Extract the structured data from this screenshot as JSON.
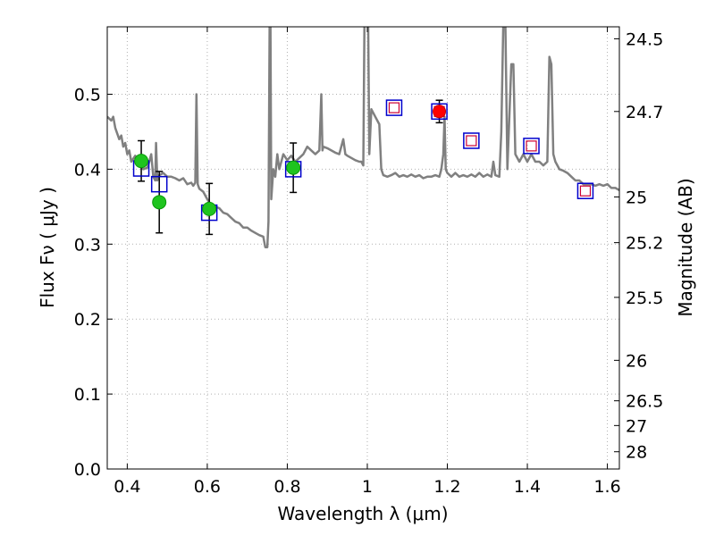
{
  "chart_data": {
    "type": "scatter",
    "title": "",
    "xlabel": "Wavelength  λ (μm)",
    "ylabel": "Flux  Fν  ( μJy )",
    "y2label": "Magnitude (AB)",
    "xlim": [
      0.35,
      1.63
    ],
    "ylim": [
      0.0,
      0.59
    ],
    "grid": true,
    "xticks": [
      0.4,
      0.6,
      0.8,
      1.0,
      1.2,
      1.4,
      1.6
    ],
    "xtick_labels": [
      "0.4",
      "0.6",
      "0.8",
      "1",
      "1.2",
      "1.4",
      "1.6"
    ],
    "yticks": [
      0.0,
      0.1,
      0.2,
      0.3,
      0.4,
      0.5
    ],
    "ytick_labels": [
      "0.0",
      "0.1",
      "0.2",
      "0.3",
      "0.4",
      "0.5"
    ],
    "y2ticks": [
      {
        "label": "24.5",
        "flux": 0.574
      },
      {
        "label": "24.7",
        "flux": 0.477
      },
      {
        "label": "25",
        "flux": 0.363
      },
      {
        "label": "25.2",
        "flux": 0.302
      },
      {
        "label": "25.5",
        "flux": 0.229
      },
      {
        "label": "26",
        "flux": 0.145
      },
      {
        "label": "26.5",
        "flux": 0.091
      },
      {
        "label": "27",
        "flux": 0.058
      },
      {
        "label": "28",
        "flux": 0.023
      }
    ],
    "colors": {
      "spectrum": "#808080",
      "observed_fill": "#1fc41f",
      "observed_edge": "#0a9a0a",
      "upper_fill": "#ff0000",
      "model_box": "#0000cc",
      "ir_box_inner": "#cc0033",
      "errorbar": "#000000",
      "grid": "#b0b0b0"
    },
    "series": [
      {
        "kind": "line",
        "points": [
          [
            0.35,
            0.47
          ],
          [
            0.36,
            0.465
          ],
          [
            0.365,
            0.47
          ],
          [
            0.37,
            0.455
          ],
          [
            0.38,
            0.44
          ],
          [
            0.385,
            0.445
          ],
          [
            0.39,
            0.43
          ],
          [
            0.395,
            0.435
          ],
          [
            0.4,
            0.42
          ],
          [
            0.405,
            0.425
          ],
          [
            0.41,
            0.41
          ],
          [
            0.42,
            0.418
          ],
          [
            0.43,
            0.405
          ],
          [
            0.44,
            0.4
          ],
          [
            0.45,
            0.402
          ],
          [
            0.455,
            0.41
          ],
          [
            0.46,
            0.42
          ],
          [
            0.465,
            0.39
          ],
          [
            0.47,
            0.385
          ],
          [
            0.472,
            0.435
          ],
          [
            0.475,
            0.385
          ],
          [
            0.48,
            0.392
          ],
          [
            0.49,
            0.395
          ],
          [
            0.5,
            0.39
          ],
          [
            0.51,
            0.39
          ],
          [
            0.52,
            0.388
          ],
          [
            0.53,
            0.385
          ],
          [
            0.54,
            0.388
          ],
          [
            0.55,
            0.38
          ],
          [
            0.56,
            0.382
          ],
          [
            0.565,
            0.378
          ],
          [
            0.57,
            0.382
          ],
          [
            0.573,
            0.5
          ],
          [
            0.576,
            0.38
          ],
          [
            0.58,
            0.374
          ],
          [
            0.59,
            0.37
          ],
          [
            0.6,
            0.36
          ],
          [
            0.61,
            0.352
          ],
          [
            0.62,
            0.35
          ],
          [
            0.63,
            0.348
          ],
          [
            0.64,
            0.342
          ],
          [
            0.65,
            0.34
          ],
          [
            0.66,
            0.335
          ],
          [
            0.67,
            0.33
          ],
          [
            0.68,
            0.328
          ],
          [
            0.69,
            0.322
          ],
          [
            0.7,
            0.322
          ],
          [
            0.71,
            0.318
          ],
          [
            0.72,
            0.315
          ],
          [
            0.73,
            0.312
          ],
          [
            0.74,
            0.31
          ],
          [
            0.745,
            0.296
          ],
          [
            0.75,
            0.296
          ],
          [
            0.753,
            0.33
          ],
          [
            0.756,
            0.6
          ],
          [
            0.758,
            0.6
          ],
          [
            0.76,
            0.36
          ],
          [
            0.765,
            0.4
          ],
          [
            0.77,
            0.39
          ],
          [
            0.775,
            0.42
          ],
          [
            0.78,
            0.4
          ],
          [
            0.79,
            0.42
          ],
          [
            0.8,
            0.412
          ],
          [
            0.81,
            0.418
          ],
          [
            0.82,
            0.41
          ],
          [
            0.83,
            0.415
          ],
          [
            0.84,
            0.42
          ],
          [
            0.85,
            0.43
          ],
          [
            0.86,
            0.425
          ],
          [
            0.87,
            0.42
          ],
          [
            0.88,
            0.425
          ],
          [
            0.885,
            0.5
          ],
          [
            0.888,
            0.425
          ],
          [
            0.89,
            0.43
          ],
          [
            0.9,
            0.428
          ],
          [
            0.91,
            0.425
          ],
          [
            0.92,
            0.422
          ],
          [
            0.93,
            0.42
          ],
          [
            0.94,
            0.44
          ],
          [
            0.945,
            0.42
          ],
          [
            0.95,
            0.418
          ],
          [
            0.96,
            0.415
          ],
          [
            0.97,
            0.412
          ],
          [
            0.98,
            0.41
          ],
          [
            0.985,
            0.41
          ],
          [
            0.99,
            0.405
          ],
          [
            0.993,
            0.6
          ],
          [
            1.002,
            0.6
          ],
          [
            1.005,
            0.42
          ],
          [
            1.01,
            0.48
          ],
          [
            1.02,
            0.47
          ],
          [
            1.03,
            0.46
          ],
          [
            1.035,
            0.4
          ],
          [
            1.04,
            0.392
          ],
          [
            1.05,
            0.39
          ],
          [
            1.06,
            0.392
          ],
          [
            1.07,
            0.395
          ],
          [
            1.08,
            0.39
          ],
          [
            1.09,
            0.392
          ],
          [
            1.1,
            0.39
          ],
          [
            1.11,
            0.393
          ],
          [
            1.12,
            0.39
          ],
          [
            1.13,
            0.392
          ],
          [
            1.14,
            0.388
          ],
          [
            1.15,
            0.39
          ],
          [
            1.16,
            0.39
          ],
          [
            1.17,
            0.392
          ],
          [
            1.18,
            0.39
          ],
          [
            1.185,
            0.4
          ],
          [
            1.19,
            0.42
          ],
          [
            1.193,
            0.47
          ],
          [
            1.196,
            0.4
          ],
          [
            1.2,
            0.395
          ],
          [
            1.21,
            0.39
          ],
          [
            1.22,
            0.395
          ],
          [
            1.23,
            0.39
          ],
          [
            1.24,
            0.392
          ],
          [
            1.25,
            0.39
          ],
          [
            1.26,
            0.393
          ],
          [
            1.27,
            0.39
          ],
          [
            1.28,
            0.395
          ],
          [
            1.29,
            0.39
          ],
          [
            1.3,
            0.393
          ],
          [
            1.31,
            0.39
          ],
          [
            1.315,
            0.41
          ],
          [
            1.32,
            0.392
          ],
          [
            1.33,
            0.39
          ],
          [
            1.335,
            0.45
          ],
          [
            1.34,
            0.6
          ],
          [
            1.345,
            0.6
          ],
          [
            1.35,
            0.4
          ],
          [
            1.36,
            0.54
          ],
          [
            1.365,
            0.54
          ],
          [
            1.37,
            0.42
          ],
          [
            1.38,
            0.41
          ],
          [
            1.39,
            0.42
          ],
          [
            1.4,
            0.41
          ],
          [
            1.41,
            0.42
          ],
          [
            1.42,
            0.41
          ],
          [
            1.43,
            0.41
          ],
          [
            1.44,
            0.405
          ],
          [
            1.45,
            0.41
          ],
          [
            1.455,
            0.55
          ],
          [
            1.46,
            0.54
          ],
          [
            1.465,
            0.42
          ],
          [
            1.47,
            0.41
          ],
          [
            1.48,
            0.4
          ],
          [
            1.49,
            0.398
          ],
          [
            1.5,
            0.395
          ],
          [
            1.51,
            0.39
          ],
          [
            1.52,
            0.385
          ],
          [
            1.53,
            0.385
          ],
          [
            1.54,
            0.38
          ],
          [
            1.55,
            0.38
          ],
          [
            1.56,
            0.38
          ],
          [
            1.57,
            0.378
          ],
          [
            1.58,
            0.38
          ],
          [
            1.59,
            0.378
          ],
          [
            1.6,
            0.38
          ],
          [
            1.61,
            0.375
          ],
          [
            1.62,
            0.375
          ],
          [
            1.63,
            0.372
          ]
        ]
      },
      {
        "kind": "observed",
        "points": [
          {
            "x": 0.435,
            "y": 0.411,
            "err": 0.027
          },
          {
            "x": 0.48,
            "y": 0.356,
            "err": 0.041
          },
          {
            "x": 0.605,
            "y": 0.347,
            "err": 0.034
          },
          {
            "x": 0.815,
            "y": 0.402,
            "err": 0.033
          }
        ]
      },
      {
        "kind": "upper",
        "points": [
          {
            "x": 1.18,
            "y": 0.477,
            "err": 0.015
          }
        ]
      },
      {
        "kind": "model_optical",
        "points": [
          {
            "x": 0.435,
            "y": 0.401
          },
          {
            "x": 0.48,
            "y": 0.38
          },
          {
            "x": 0.605,
            "y": 0.342
          },
          {
            "x": 0.815,
            "y": 0.4
          }
        ]
      },
      {
        "kind": "model_ir",
        "points": [
          {
            "x": 1.067,
            "y": 0.482
          },
          {
            "x": 1.18,
            "y": 0.477
          },
          {
            "x": 1.26,
            "y": 0.438
          },
          {
            "x": 1.41,
            "y": 0.431
          },
          {
            "x": 1.545,
            "y": 0.371
          }
        ]
      }
    ]
  }
}
